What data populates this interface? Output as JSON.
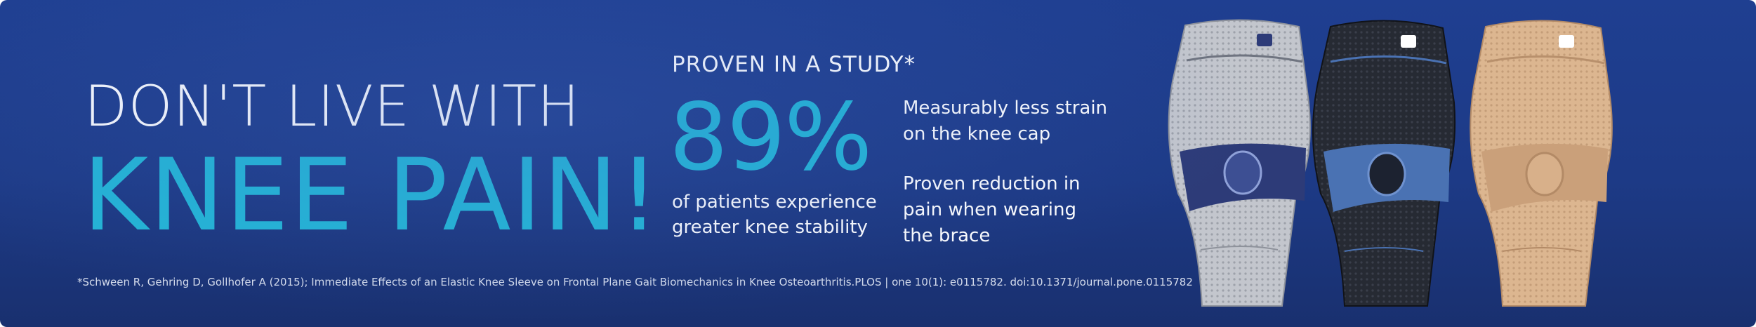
{
  "headline": {
    "line1": "DON'T LIVE WITH",
    "line2": "KNEE PAIN!"
  },
  "study": {
    "label": "PROVEN IN A STUDY*",
    "stat": "89%",
    "caption_lines": [
      "of patients experience",
      "greater knee stability"
    ]
  },
  "benefits": [
    {
      "lines": [
        "Measurably less strain",
        "on the knee cap"
      ]
    },
    {
      "lines": [
        "Proven reduction in",
        "pain when wearing",
        "the brace"
      ]
    }
  ],
  "footnote": "*Schween R, Gehring D, Gollhofer A (2015); Immediate Effects of an Elastic Knee Sleeve on Frontal Plane Gait Biomechanics in Knee Osteoarthritis.PLOS | one 10(1): e0115782. doi:10.1371/journal.pone.0115782",
  "colors": {
    "background": "#1e3a87",
    "accent": "#23b6d6",
    "text": "#ffffff"
  },
  "products": [
    {
      "name": "knee-brace-grey",
      "color": "#b9bcc4",
      "pad_color": "#2d3b78"
    },
    {
      "name": "knee-brace-black",
      "color": "#23262e",
      "pad_color": "#4a72b3"
    },
    {
      "name": "knee-brace-beige",
      "color": "#dbb48e",
      "pad_color": "#c99b76"
    }
  ]
}
